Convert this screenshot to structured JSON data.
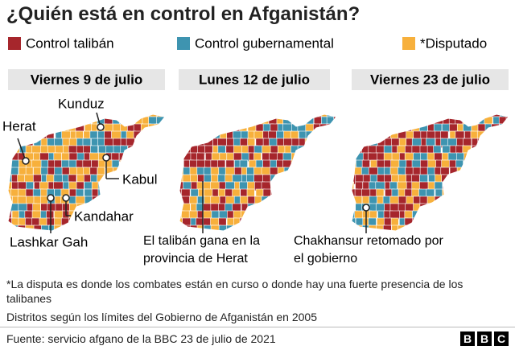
{
  "title": "¿Quién está en control en Afganistán?",
  "legend": [
    {
      "label": "Control talibán",
      "color": "#a6262c"
    },
    {
      "label": "Control gubernamental",
      "color": "#3e94b0"
    },
    {
      "label": "*Disputado",
      "color": "#f7b03c"
    }
  ],
  "panels": [
    {
      "date": "Viernes 9 de julio",
      "labels": [
        "Kunduz",
        "Herat",
        "Kabul",
        "Kandahar",
        "Lashkar Gah"
      ]
    },
    {
      "date": "Lunes 12 de julio",
      "annotation_lines": [
        "El talibán gana en la",
        "provincia de Herat"
      ]
    },
    {
      "date": "Viernes 23 de julio",
      "annotation_lines": [
        "Chakhansur retomado por",
        "el gobierno"
      ]
    }
  ],
  "notes": [
    "*La disputa es donde los combates están en curso o donde hay una fuerte presencia de los talibanes",
    "Distritos según los límites del Gobierno de Afganistán en 2005"
  ],
  "source": "Fuente: servicio afgano de la BBC 23 de julio de 2021",
  "logo_letters": [
    "B",
    "B",
    "C"
  ]
}
